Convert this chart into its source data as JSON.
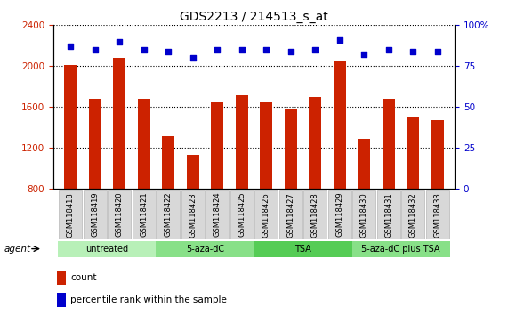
{
  "title": "GDS2213 / 214513_s_at",
  "categories": [
    "GSM118418",
    "GSM118419",
    "GSM118420",
    "GSM118421",
    "GSM118422",
    "GSM118423",
    "GSM118424",
    "GSM118425",
    "GSM118426",
    "GSM118427",
    "GSM118428",
    "GSM118429",
    "GSM118430",
    "GSM118431",
    "GSM118432",
    "GSM118433"
  ],
  "bar_values": [
    2010,
    1680,
    2080,
    1680,
    1320,
    1130,
    1650,
    1720,
    1650,
    1580,
    1700,
    2050,
    1290,
    1680,
    1500,
    1470
  ],
  "dot_values": [
    87,
    85,
    90,
    85,
    84,
    80,
    85,
    85,
    85,
    84,
    85,
    91,
    82,
    85,
    84,
    84
  ],
  "bar_color": "#cc2200",
  "dot_color": "#0000cc",
  "ylim_left": [
    800,
    2400
  ],
  "ylim_right": [
    0,
    100
  ],
  "yticks_left": [
    800,
    1200,
    1600,
    2000,
    2400
  ],
  "yticks_right": [
    0,
    25,
    50,
    75,
    100
  ],
  "groups": [
    {
      "label": "untreated",
      "start": 0,
      "end": 3,
      "color": "#b8f0b8"
    },
    {
      "label": "5-aza-dC",
      "start": 4,
      "end": 7,
      "color": "#88e088"
    },
    {
      "label": "TSA",
      "start": 8,
      "end": 11,
      "color": "#55cc55"
    },
    {
      "label": "5-aza-dC plus TSA",
      "start": 12,
      "end": 15,
      "color": "#88e088"
    }
  ],
  "agent_label": "agent",
  "legend_items": [
    {
      "label": "count",
      "color": "#cc2200"
    },
    {
      "label": "percentile rank within the sample",
      "color": "#0000cc"
    }
  ],
  "title_fontsize": 10,
  "tick_fontsize": 7.5,
  "bar_width": 0.5
}
